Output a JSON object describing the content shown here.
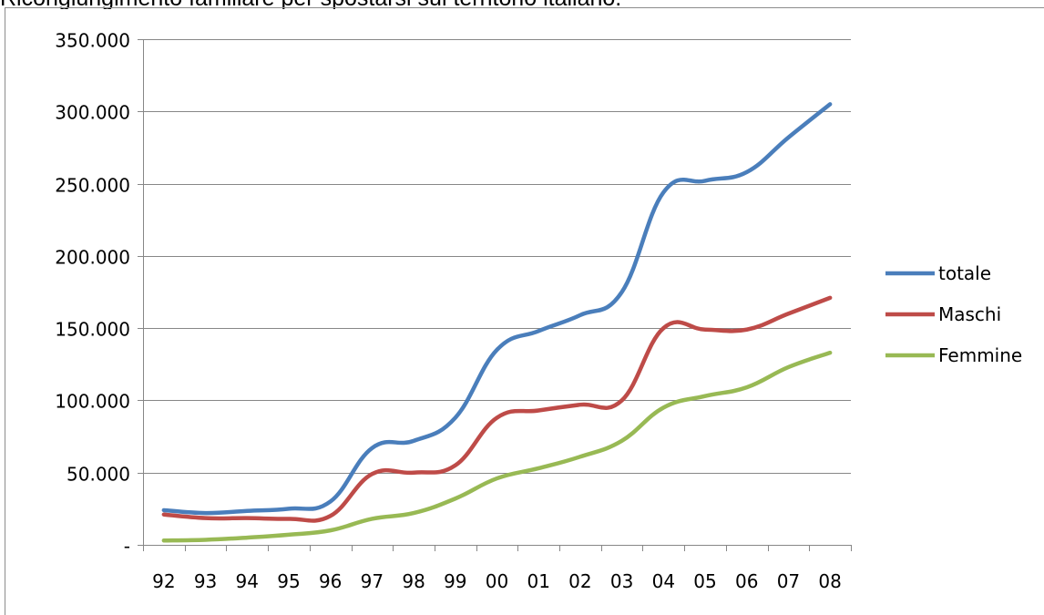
{
  "caption": "Ricongiungimento familiare per spostarsi sul territorio italiano.",
  "chart_data": {
    "type": "line",
    "title": "",
    "xlabel": "",
    "ylabel": "",
    "categories": [
      "92",
      "93",
      "94",
      "95",
      "96",
      "97",
      "98",
      "99",
      "00",
      "01",
      "02",
      "03",
      "04",
      "05",
      "06",
      "07",
      "08"
    ],
    "ylim": [
      0,
      350000
    ],
    "yticks": [
      0,
      50000,
      100000,
      150000,
      200000,
      250000,
      300000,
      350000
    ],
    "ytick_labels": [
      "-",
      "50.000",
      "100.000",
      "150.000",
      "200.000",
      "250.000",
      "300.000",
      "350.000"
    ],
    "grid": "horizontal",
    "legend_position": "right",
    "series": [
      {
        "name": "totale",
        "color": "#4a7ebb",
        "values": [
          24000,
          22000,
          23500,
          25000,
          30000,
          67000,
          72000,
          88000,
          135000,
          148000,
          159000,
          175000,
          244000,
          252000,
          258000,
          282000,
          305000
        ]
      },
      {
        "name": "Maschi",
        "color": "#be4b48",
        "values": [
          21000,
          18500,
          18500,
          18000,
          20000,
          49000,
          50000,
          55000,
          88000,
          93000,
          97000,
          100000,
          150000,
          149000,
          149000,
          160000,
          171000
        ]
      },
      {
        "name": "Femmine",
        "color": "#98b954",
        "values": [
          3000,
          3500,
          5000,
          7000,
          10000,
          18000,
          22000,
          32000,
          46000,
          53000,
          61000,
          72000,
          95000,
          103000,
          109000,
          123000,
          133000
        ]
      }
    ]
  }
}
